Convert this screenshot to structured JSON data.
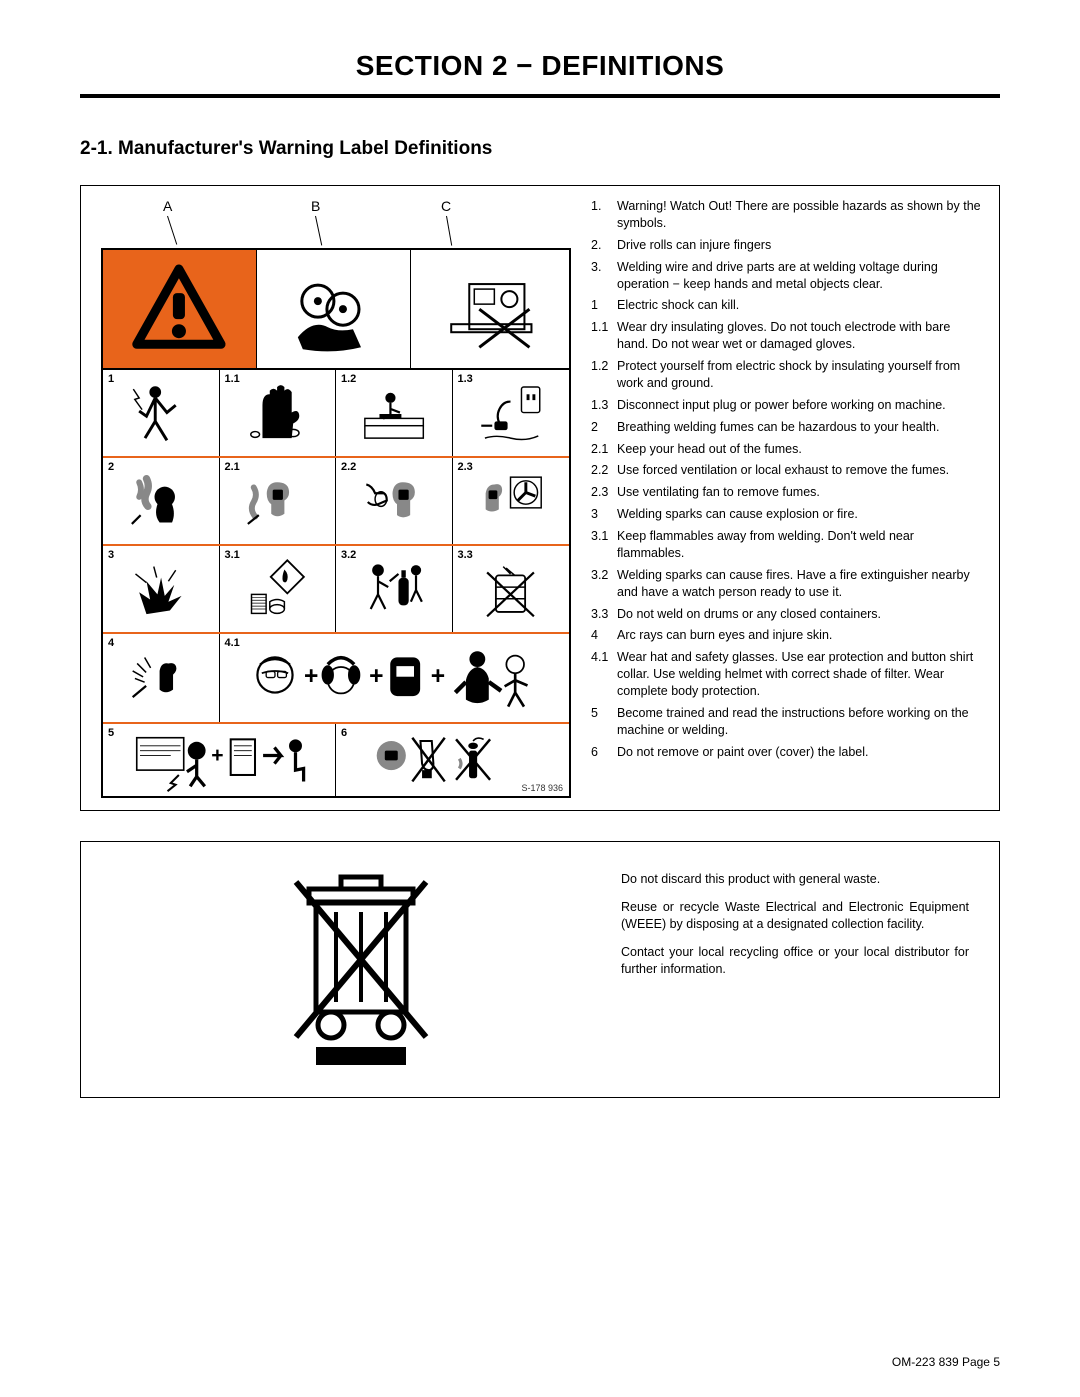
{
  "section_title": "SECTION 2 − DEFINITIONS",
  "subsection_title": "2-1.   Manufacturer's Warning Label Definitions",
  "colors": {
    "accent_orange": "#e8641b",
    "black": "#000000",
    "white": "#ffffff"
  },
  "abc_labels": [
    "A",
    "B",
    "C"
  ],
  "label_grid": {
    "top_row": {
      "cells": [
        {
          "type": "warning-triangle",
          "bg": "#e8641b"
        },
        {
          "type": "drive-rolls-pinch"
        },
        {
          "type": "wire-feeder-x"
        }
      ]
    },
    "rows4": [
      {
        "nums": [
          "1",
          "1.1",
          "1.2",
          "1.3"
        ],
        "icons": [
          "shock-person",
          "gloves",
          "insulate-work",
          "unplug"
        ]
      },
      {
        "nums": [
          "2",
          "2.1",
          "2.2",
          "2.3"
        ],
        "icons": [
          "fumes-head",
          "head-out-fumes",
          "ventilation",
          "fan-exhaust"
        ]
      },
      {
        "nums": [
          "3",
          "3.1",
          "3.2",
          "3.3"
        ],
        "icons": [
          "sparks-explosion",
          "flammables",
          "fire-extinguisher",
          "drum-x"
        ]
      }
    ],
    "row_span": {
      "nums": [
        "4",
        "4.1"
      ],
      "icons": [
        "arc-rays",
        "ppe-sequence"
      ]
    },
    "row2": {
      "nums": [
        "5",
        "6"
      ],
      "icons": [
        "training-manual",
        "label-paint-x"
      ]
    },
    "s_ref": "S-178 936"
  },
  "definitions": [
    {
      "num": "1.",
      "txt": "Warning! Watch Out! There are possible hazards as shown by the symbols."
    },
    {
      "num": "2.",
      "txt": "Drive rolls can injure fingers"
    },
    {
      "num": "3.",
      "txt": "Welding wire and drive parts are at welding voltage during operation − keep hands and metal objects clear."
    },
    {
      "num": "1",
      "txt": "Electric shock can kill."
    },
    {
      "num": "1.1",
      "txt": "Wear dry insulating gloves. Do not touch electrode with bare hand. Do not wear wet or damaged gloves."
    },
    {
      "num": "1.2",
      "txt": "Protect yourself from electric shock by insulating yourself from work and ground."
    },
    {
      "num": "1.3",
      "txt": "Disconnect input plug or power before working on machine."
    },
    {
      "num": "2",
      "txt": "Breathing welding fumes can be hazardous to your health."
    },
    {
      "num": "2.1",
      "txt": "Keep your head out of the fumes."
    },
    {
      "num": "2.2",
      "txt": "Use forced ventilation or local exhaust to remove the fumes."
    },
    {
      "num": "2.3",
      "txt": "Use ventilating fan to remove fumes."
    },
    {
      "num": "3",
      "txt": "Welding sparks can cause explosion or fire."
    },
    {
      "num": "3.1",
      "txt": "Keep flammables away from welding. Don't weld near flammables."
    },
    {
      "num": "3.2",
      "txt": "Welding sparks can cause fires. Have a fire extinguisher nearby and have a watch person ready to use it."
    },
    {
      "num": "3.3",
      "txt": "Do not weld on drums or any closed containers."
    },
    {
      "num": "4",
      "txt": "Arc rays can burn eyes and injure skin."
    },
    {
      "num": "4.1",
      "txt": "Wear hat and safety glasses. Use ear protection and button shirt collar. Use welding helmet with correct shade of filter. Wear complete body protection."
    },
    {
      "num": "5",
      "txt": "Become trained and read the instructions before working on the machine or welding."
    },
    {
      "num": "6",
      "txt": "Do not remove or paint over (cover) the label."
    }
  ],
  "weee": {
    "paragraphs": [
      "Do not discard this product with general waste.",
      "Reuse or recycle Waste Electrical and Electronic Equipment (WEEE) by disposing at a designated collection facility.",
      "Contact your local recycling office or your local distributor for further information."
    ]
  },
  "footer": "OM-223 839 Page 5"
}
